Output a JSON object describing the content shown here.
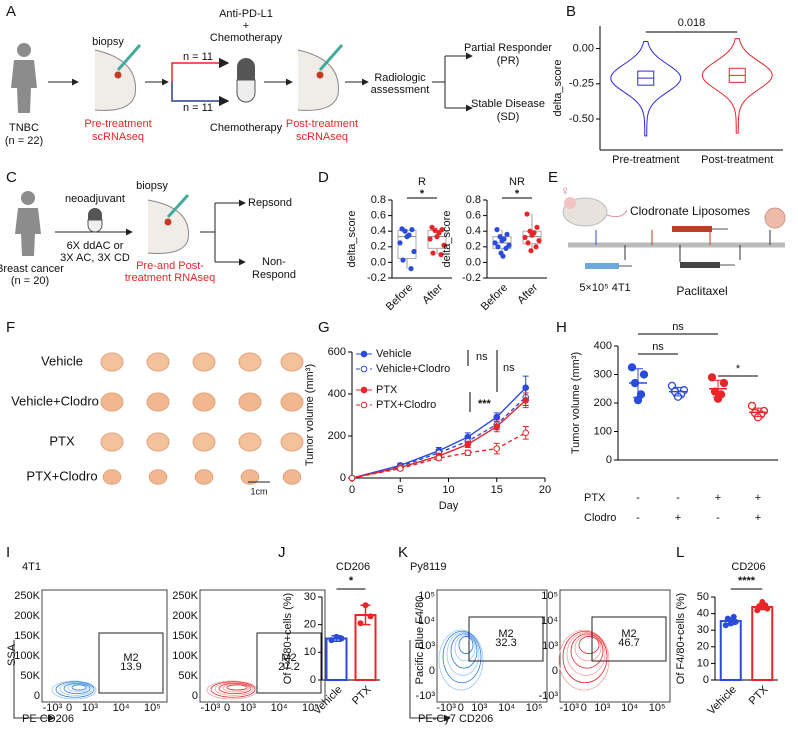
{
  "panel_letters": [
    "A",
    "B",
    "C",
    "D",
    "E",
    "F",
    "G",
    "H",
    "I",
    "J",
    "K",
    "L"
  ],
  "panel_a": {
    "tnbc": "TNBC",
    "n": "(n = 22)",
    "biopsy": "biopsy",
    "pre": [
      "Pre-treatment",
      "scRNAseq"
    ],
    "combo": [
      "Anti-PD-L1",
      "+",
      "Chemotherapy"
    ],
    "arm_top": "n = 11",
    "arm_bottom": "n = 11",
    "chemo": "Chemotherapy",
    "post": [
      "Post-treatment",
      "scRNAseq"
    ],
    "assessment": [
      "Radiologic",
      "assessment"
    ],
    "pr": [
      "Partial Responder",
      "(PR)"
    ],
    "sd": [
      "Stable Disease",
      "(SD)"
    ]
  },
  "panel_c": {
    "cohort": [
      "Breast cancer",
      "(n = 20)"
    ],
    "neoadjuvant": "neoadjuvant",
    "regimen": [
      "6X ddAC or",
      "3X AC, 3X CD"
    ],
    "biopsy": "biopsy",
    "seq": [
      "Pre-and Post-",
      "treatment RNAseq"
    ],
    "respond": "Repsond",
    "non_respond": [
      "Non-",
      "Respond"
    ]
  },
  "panel_e": {
    "clodronate": "Clodronate Liposomes",
    "cells": "5×10⁵ 4T1",
    "paclitaxel": "Paclitaxel"
  },
  "panel_f": {
    "rows": [
      "Vehicle",
      "Vehicle+Clodro",
      "PTX",
      "PTX+Clodro"
    ],
    "scale": "1cm"
  },
  "panel_i": {
    "title": "4T1",
    "xlabel": "PE CD206",
    "ylabel": "SSA",
    "yticks": [
      "250K",
      "200K",
      "150K",
      "100K",
      "50K",
      "0"
    ],
    "xticks": [
      "-10³",
      "0",
      "10³",
      "10⁴",
      "10⁵"
    ],
    "gate": "M2",
    "gate_values": [
      13.9,
      27.2
    ]
  },
  "panel_k": {
    "title": "Py8119",
    "xlabel": "PE-Cy7 CD206",
    "ylabel": "Pacific Blue F4/80",
    "yticks": [
      "10⁵",
      "10⁴",
      "10³",
      "0",
      "-10³"
    ],
    "xticks": [
      "-10³",
      "0",
      "10³",
      "10⁴",
      "10⁵"
    ],
    "gate": "M2",
    "gate_values": [
      32.3,
      46.7
    ]
  },
  "chart_data": [
    {
      "type": "violin",
      "ylabel": "delta_score",
      "categories": [
        "Pre-treatment",
        "Post-treatment"
      ],
      "series": [
        {
          "color": "#2b2bd9",
          "box": [
            -0.26,
            -0.21,
            -0.16
          ],
          "range": [
            -0.62,
            0.05
          ]
        },
        {
          "color": "#e8262a",
          "box": [
            -0.24,
            -0.19,
            -0.14
          ],
          "range": [
            -0.6,
            0.07
          ]
        }
      ],
      "ylim": [
        -0.72,
        0.16
      ],
      "yticks": [
        {
          "value": 0,
          "label": "0.00"
        },
        -0.25,
        {
          "value": -0.5,
          "label": "-0.50"
        }
      ],
      "annotation": "0.018"
    },
    {
      "type": "boxdot",
      "title": "R",
      "ylabel": "delta_score",
      "categories": [
        "Before",
        "After"
      ],
      "series": [
        {
          "color": "#2b4bd9",
          "values": [
            0.43,
            0.42,
            0.4,
            0.35,
            0.33,
            0.25,
            0.14,
            0.03,
            -0.08
          ],
          "box": [
            -0.08,
            0.05,
            0.33,
            0.41,
            0.43
          ]
        },
        {
          "color": "#e8262a",
          "values": [
            0.45,
            0.42,
            0.41,
            0.38,
            0.33,
            0.3,
            0.22,
            0.12,
            0.1
          ],
          "box": [
            0.1,
            0.18,
            0.33,
            0.41,
            0.45
          ]
        }
      ],
      "ylim": [
        -0.2,
        0.8
      ],
      "yticks": [
        -0.2,
        {
          "value": 0,
          "label": "0.0"
        },
        0.2,
        0.4,
        0.6,
        0.8
      ],
      "annotation": "*"
    },
    {
      "type": "boxdot",
      "title": "NR",
      "ylabel": "delta_score",
      "categories": [
        "Before",
        "After"
      ],
      "series": [
        {
          "color": "#2b4bd9",
          "values": [
            0.42,
            0.36,
            0.33,
            0.3,
            0.28,
            0.25,
            0.22,
            0.2,
            0.18,
            0.12,
            0.08
          ],
          "box": [
            0.08,
            0.18,
            0.25,
            0.33,
            0.42
          ]
        },
        {
          "color": "#e8262a",
          "values": [
            0.62,
            0.45,
            0.4,
            0.38,
            0.35,
            0.32,
            0.28,
            0.25,
            0.2,
            0.15
          ],
          "box": [
            0.15,
            0.24,
            0.33,
            0.4,
            0.62
          ]
        }
      ],
      "ylim": [
        -0.2,
        0.8
      ],
      "yticks": [
        -0.2,
        {
          "value": 0,
          "label": "0.0"
        },
        0.2,
        0.4,
        0.6,
        0.8
      ],
      "annotation": "*"
    },
    {
      "type": "line",
      "xlabel": "Day",
      "ylabel": "Tumor volume (mm³)",
      "x": [
        0,
        5,
        9,
        12,
        15,
        18
      ],
      "xlim": [
        0,
        20
      ],
      "xticks": [
        0,
        5,
        10,
        15,
        20
      ],
      "ylim": [
        0,
        600
      ],
      "yticks": [
        0,
        200,
        400,
        600
      ],
      "series": [
        {
          "name": "Vehicle",
          "color": "#2b4bd9",
          "dashed": false,
          "filled": true,
          "values": [
            0,
            60,
            130,
            195,
            290,
            430
          ],
          "errors": [
            0,
            10,
            15,
            20,
            20,
            55
          ]
        },
        {
          "name": "Vehicle+Clodro",
          "color": "#2b4bd9",
          "dashed": true,
          "filled": false,
          "values": [
            0,
            55,
            120,
            175,
            255,
            385
          ],
          "errors": [
            0,
            8,
            15,
            18,
            25,
            40
          ]
        },
        {
          "name": "PTX",
          "color": "#e8262a",
          "dashed": false,
          "filled": true,
          "values": [
            0,
            50,
            105,
            160,
            245,
            370
          ],
          "errors": [
            0,
            8,
            12,
            15,
            25,
            35
          ]
        },
        {
          "name": "PTX+Clodro",
          "color": "#e8262a",
          "dashed": true,
          "filled": false,
          "values": [
            0,
            45,
            95,
            120,
            140,
            215
          ],
          "errors": [
            0,
            8,
            10,
            12,
            25,
            30
          ]
        }
      ],
      "annotations": [
        "ns",
        "ns",
        "***"
      ]
    },
    {
      "type": "dot",
      "ylabel": "Tumor volume (mm³)",
      "ylim": [
        0,
        400
      ],
      "yticks": [
        0,
        100,
        200,
        300,
        400
      ],
      "series": [
        {
          "color": "#2b4bd9",
          "filled": true,
          "values": [
            325,
            300,
            270,
            230,
            210
          ],
          "mean": 270,
          "sd": 50
        },
        {
          "color": "#2b4bd9",
          "filled": false,
          "values": [
            260,
            245,
            240,
            230,
            222
          ],
          "mean": 240,
          "sd": 15
        },
        {
          "color": "#e8262a",
          "filled": true,
          "values": [
            290,
            270,
            240,
            230,
            215
          ],
          "mean": 250,
          "sd": 30
        },
        {
          "color": "#e8262a",
          "filled": false,
          "values": [
            190,
            172,
            165,
            160,
            150
          ],
          "mean": 167,
          "sd": 15
        }
      ],
      "annotations": [
        "ns",
        "ns",
        "*"
      ],
      "table": [
        {
          "label": "PTX",
          "signs": [
            "-",
            "-",
            "+",
            "+"
          ]
        },
        {
          "label": "Clodro",
          "signs": [
            "-",
            "+",
            "-",
            "+"
          ]
        }
      ]
    },
    {
      "type": "bar",
      "title": "CD206",
      "ylabel": "Of F4/80+cells (%)",
      "categories": [
        "Vehicle",
        "PTX"
      ],
      "ylim": [
        0,
        30
      ],
      "yticks": [
        0,
        10,
        20,
        30
      ],
      "series": [
        {
          "color": "#2b4bd9",
          "mean": 15,
          "sd": 1,
          "points": [
            14.4,
            15,
            15.6
          ]
        },
        {
          "color": "#e8262a",
          "mean": 23.5,
          "sd": 3.5,
          "points": [
            20.5,
            23,
            27
          ]
        }
      ],
      "annotation": "*"
    },
    {
      "type": "bar",
      "title": "CD206",
      "ylabel": "Of F4/80+cells (%)",
      "categories": [
        "Vehicle",
        "PTX"
      ],
      "ylim": [
        0,
        50
      ],
      "yticks": [
        0,
        10,
        20,
        30,
        40,
        50
      ],
      "series": [
        {
          "color": "#2b4bd9",
          "mean": 35.5,
          "sd": 2,
          "points": [
            33,
            35,
            36,
            37,
            38,
            34
          ]
        },
        {
          "color": "#e8262a",
          "mean": 44,
          "sd": 1.5,
          "points": [
            42,
            43,
            44,
            44.5,
            45,
            47
          ]
        }
      ],
      "annotation": "****"
    }
  ]
}
